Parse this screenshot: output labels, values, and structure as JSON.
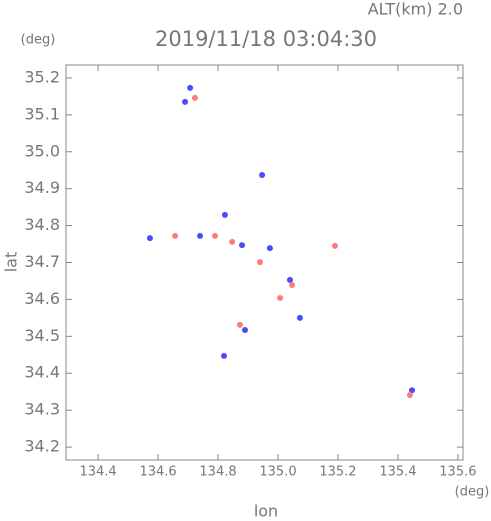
{
  "chart_data": {
    "type": "scatter",
    "title": "2019/11/18 03:04:30",
    "subtitle": "ALT(km) 2.0",
    "x_label": "lon",
    "x_unit": "(deg)",
    "y_label": "lat",
    "y_unit": "(deg)",
    "xlim": [
      134.293,
      135.617
    ],
    "ylim": [
      34.165,
      35.235
    ],
    "xticks": [
      134.4,
      134.6,
      134.8,
      {
        "value": 135,
        "label": "135.0"
      },
      135.2,
      135.4,
      135.6
    ],
    "yticks": [
      34.2,
      34.3,
      34.4,
      34.5,
      34.6,
      34.7,
      34.8,
      34.9,
      {
        "value": 35,
        "label": "35.0"
      },
      35.1,
      35.2
    ],
    "series": [
      {
        "color": "#4a4aff",
        "x": [
          134.707,
          134.69,
          134.573,
          134.74,
          134.88,
          134.973,
          135.04,
          134.89,
          134.82,
          134.947,
          135.447,
          134.823,
          135.073
        ],
        "values": [
          35.173,
          35.135,
          34.766,
          34.772,
          34.747,
          34.739,
          34.653,
          34.517,
          34.447,
          34.937,
          34.354,
          34.829,
          34.55
        ]
      },
      {
        "color": "#ff7a7a",
        "x": [
          134.657,
          134.847,
          134.94,
          135.007,
          135.047,
          135.19,
          135.44,
          134.723,
          134.873,
          134.79
        ],
        "values": [
          34.772,
          34.756,
          34.701,
          34.604,
          34.639,
          34.745,
          34.341,
          35.146,
          34.531,
          34.772
        ]
      }
    ]
  }
}
